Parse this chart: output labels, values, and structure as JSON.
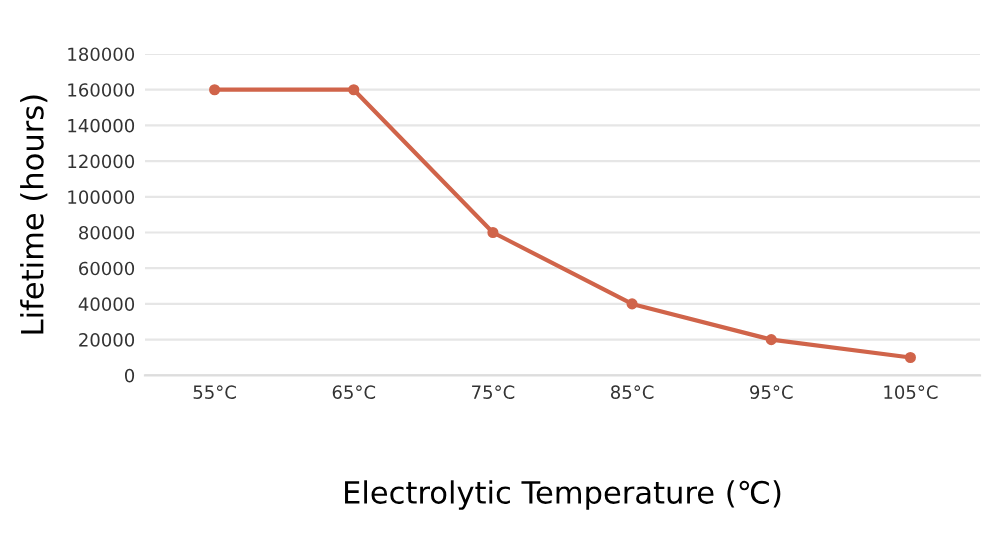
{
  "chart_data": {
    "type": "line",
    "xlabel": "Electrolytic Temperature (℃)",
    "ylabel": "Lifetime (hours)",
    "categories": [
      "55°C",
      "65°C",
      "75°C",
      "85°C",
      "95°C",
      "105°C"
    ],
    "series": [
      {
        "color": "#d0644a",
        "values": [
          160000,
          160000,
          80000,
          40000,
          20000,
          10000
        ]
      }
    ],
    "ylim": [
      0,
      180000
    ],
    "yticks": [
      0,
      20000,
      40000,
      60000,
      80000,
      100000,
      120000,
      140000,
      160000,
      180000
    ],
    "grid": "y",
    "marker": "circle",
    "line_style": "solid"
  }
}
